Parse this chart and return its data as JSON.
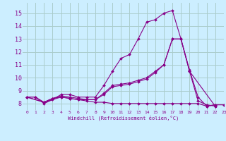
{
  "title": "",
  "xlabel": "Windchill (Refroidissement éolien,°C)",
  "background_color": "#cceeff",
  "grid_color": "#aacccc",
  "line_color": "#880088",
  "xlim": [
    -0.5,
    23
  ],
  "ylim": [
    7.5,
    15.8
  ],
  "yticks": [
    8,
    9,
    10,
    11,
    12,
    13,
    14,
    15
  ],
  "xticks": [
    0,
    1,
    2,
    3,
    4,
    5,
    6,
    7,
    8,
    9,
    10,
    11,
    12,
    13,
    14,
    15,
    16,
    17,
    18,
    19,
    20,
    21,
    22,
    23
  ],
  "lines": [
    {
      "x": [
        0,
        1,
        2,
        3,
        4,
        5,
        6,
        7,
        8,
        9,
        10,
        11,
        12,
        13,
        14,
        15,
        16,
        17,
        18,
        19,
        20,
        21,
        22
      ],
      "y": [
        8.5,
        8.5,
        8.0,
        8.3,
        8.7,
        8.7,
        8.5,
        8.5,
        8.5,
        9.4,
        10.5,
        11.5,
        11.8,
        13.0,
        14.3,
        14.5,
        15.0,
        15.2,
        13.0,
        10.6,
        8.5,
        7.8,
        7.9
      ]
    },
    {
      "x": [
        0,
        1,
        2,
        3,
        4,
        5,
        6,
        7,
        8,
        9,
        10,
        11,
        12,
        13,
        14,
        15,
        16,
        17,
        18,
        19,
        20,
        21,
        22
      ],
      "y": [
        8.5,
        8.5,
        8.1,
        8.4,
        8.6,
        8.5,
        8.4,
        8.3,
        8.3,
        8.8,
        9.4,
        9.5,
        9.6,
        9.8,
        10.0,
        10.5,
        11.0,
        13.0,
        13.0,
        10.5,
        8.2,
        7.9,
        7.8
      ]
    },
    {
      "x": [
        0,
        2,
        3,
        4,
        5,
        6,
        7,
        8,
        9,
        10,
        11,
        12,
        13,
        14,
        15,
        16,
        17,
        18,
        19,
        22
      ],
      "y": [
        8.5,
        8.1,
        8.4,
        8.5,
        8.4,
        8.3,
        8.3,
        8.3,
        8.7,
        9.3,
        9.4,
        9.5,
        9.7,
        9.9,
        10.4,
        11.0,
        13.0,
        13.0,
        10.5,
        7.8
      ]
    },
    {
      "x": [
        0,
        2,
        4,
        5,
        6,
        7,
        8,
        9,
        10,
        11,
        12,
        13,
        14,
        15,
        16,
        17,
        18,
        19,
        20,
        21,
        22,
        23
      ],
      "y": [
        8.5,
        8.1,
        8.5,
        8.4,
        8.3,
        8.2,
        8.1,
        8.1,
        8.0,
        8.0,
        8.0,
        8.0,
        8.0,
        8.0,
        8.0,
        8.0,
        8.0,
        8.0,
        8.0,
        7.8,
        7.9,
        7.9
      ]
    }
  ]
}
